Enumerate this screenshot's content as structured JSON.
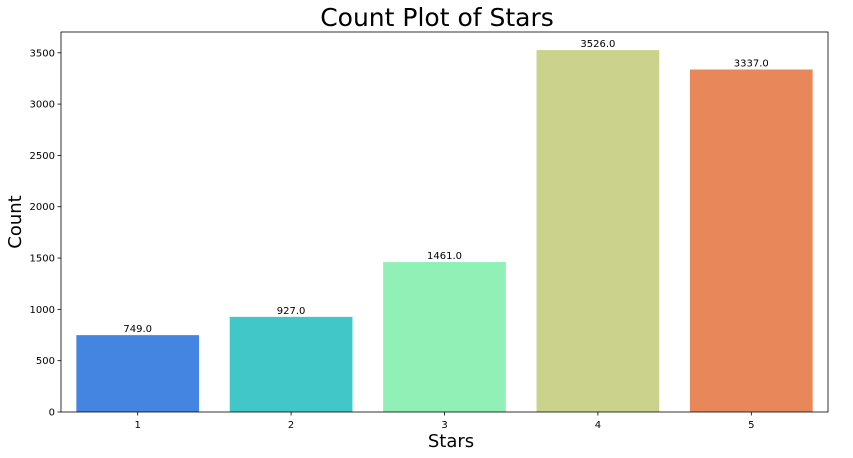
{
  "chart_data": {
    "type": "bar",
    "title": "Count Plot of Stars",
    "xlabel": "Stars",
    "ylabel": "Count",
    "categories": [
      "1",
      "2",
      "3",
      "4",
      "5"
    ],
    "values": [
      749,
      927,
      1461,
      3526,
      3337
    ],
    "data_labels": [
      "749.0",
      "927.0",
      "1461.0",
      "3526.0",
      "3337.0"
    ],
    "bar_colors": [
      "#4585e2",
      "#42c7c9",
      "#91f0b6",
      "#cbd28b",
      "#e8885a"
    ],
    "ylim": [
      0,
      3702.3
    ],
    "yticks": [
      0,
      500,
      1000,
      1500,
      2000,
      2500,
      3000,
      3500
    ],
    "ytick_labels": [
      "0",
      "500",
      "1000",
      "1500",
      "2000",
      "2500",
      "3000",
      "3500"
    ],
    "grid": false,
    "legend": "none"
  }
}
